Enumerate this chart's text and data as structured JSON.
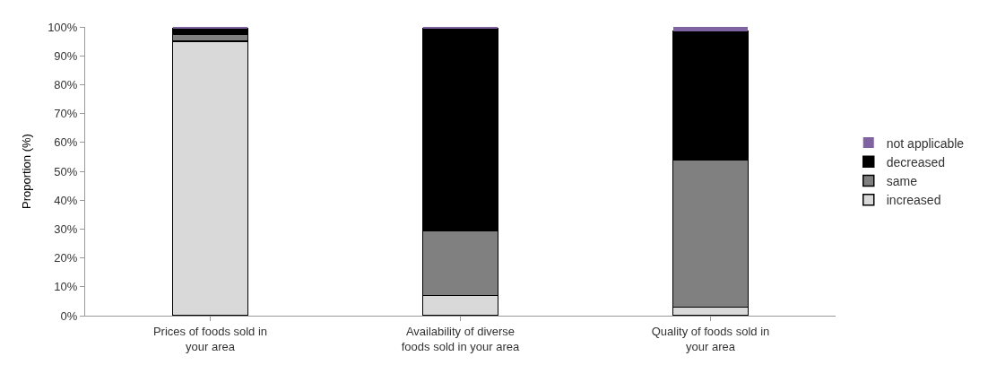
{
  "chart_data": {
    "type": "bar",
    "stacked": true,
    "ylabel": "Proportion (%)",
    "categories": [
      "Prices of foods sold in your area",
      "Availability of diverse foods sold in your area",
      "Quality of foods sold in your area"
    ],
    "series": [
      {
        "name": "increased",
        "color": "#d9d9d9",
        "values": [
          95,
          7,
          3
        ]
      },
      {
        "name": "same",
        "color": "#808080",
        "values": [
          2.5,
          22.5,
          51
        ]
      },
      {
        "name": "decreased",
        "color": "#000000",
        "values": [
          2,
          70,
          44.5
        ]
      },
      {
        "name": "not applicable",
        "color": "#8064a2",
        "values": [
          0.5,
          0.5,
          1.5
        ]
      }
    ],
    "ylim": [
      0,
      100
    ],
    "yticks": [
      {
        "value": 0,
        "label": "0%"
      },
      {
        "value": 10,
        "label": "10%"
      },
      {
        "value": 20,
        "label": "20%"
      },
      {
        "value": 30,
        "label": "30%"
      },
      {
        "value": 40,
        "label": "40%"
      },
      {
        "value": 50,
        "label": "50%"
      },
      {
        "value": 60,
        "label": "60%"
      },
      {
        "value": 70,
        "label": "70%"
      },
      {
        "value": 80,
        "label": "80%"
      },
      {
        "value": 90,
        "label": "90%"
      },
      {
        "value": 100,
        "label": "100%"
      }
    ],
    "grid": false,
    "legend": "right"
  }
}
